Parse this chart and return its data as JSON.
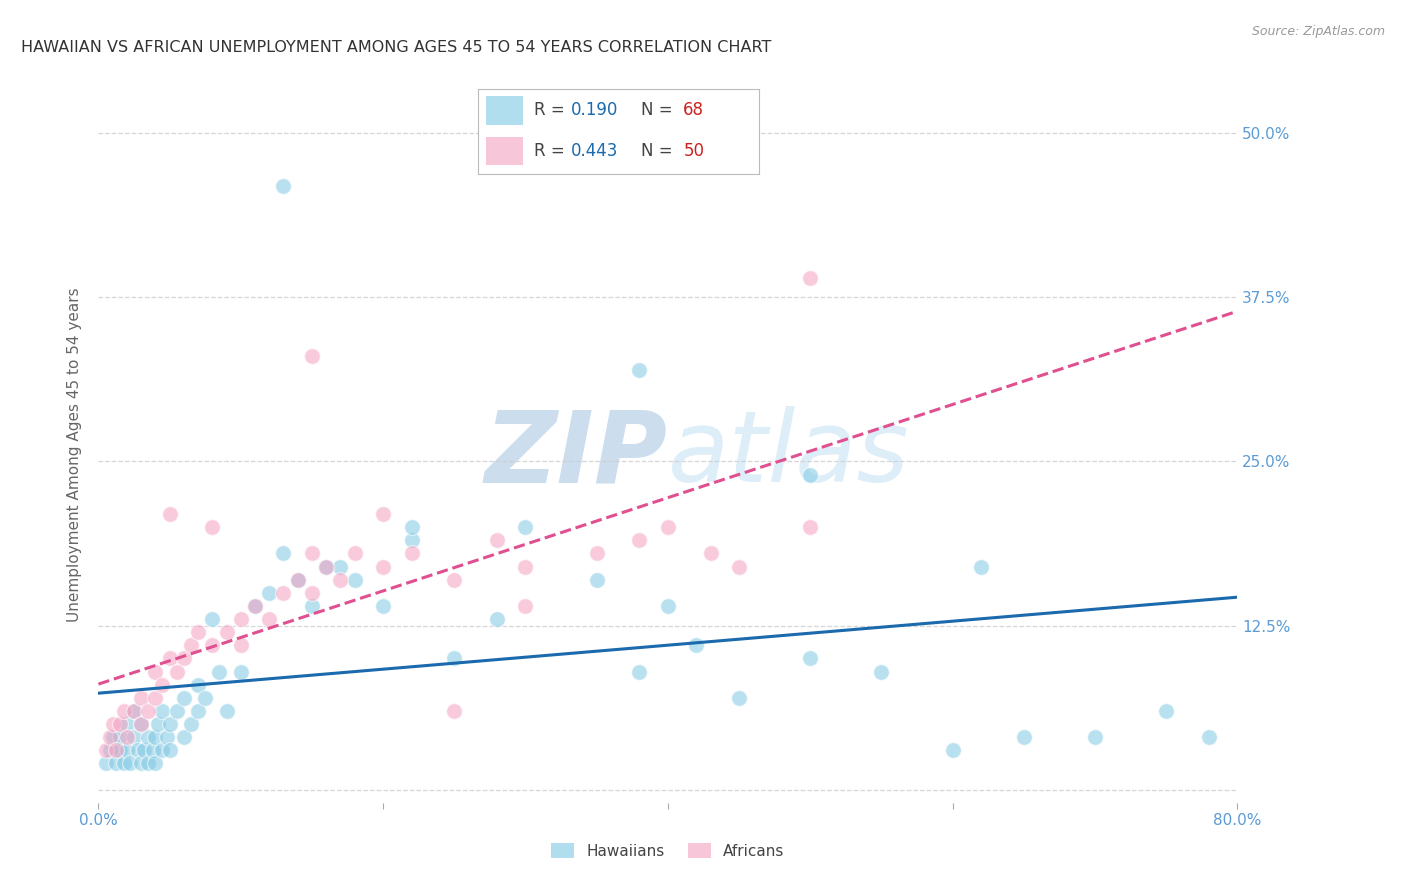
{
  "title": "HAWAIIAN VS AFRICAN UNEMPLOYMENT AMONG AGES 45 TO 54 YEARS CORRELATION CHART",
  "source": "Source: ZipAtlas.com",
  "ylabel": "Unemployment Among Ages 45 to 54 years",
  "xlim": [
    0.0,
    0.8
  ],
  "ylim": [
    -0.01,
    0.52
  ],
  "xticks": [
    0.0,
    0.2,
    0.4,
    0.6,
    0.8
  ],
  "xticklabels": [
    "0.0%",
    "",
    "",
    "",
    "80.0%"
  ],
  "yticks": [
    0.0,
    0.125,
    0.25,
    0.375,
    0.5
  ],
  "right_yticklabels": [
    "",
    "12.5%",
    "25.0%",
    "37.5%",
    "50.0%"
  ],
  "hawaiian_R": 0.19,
  "hawaiian_N": 68,
  "african_R": 0.443,
  "african_N": 50,
  "hawaiian_color": "#7ec8e3",
  "african_color": "#f4a0c0",
  "hawaiian_line_color": "#1a6aad",
  "african_line_color": "#e05090",
  "hawaiian_scatter_x": [
    0.005,
    0.008,
    0.01,
    0.012,
    0.015,
    0.015,
    0.018,
    0.02,
    0.02,
    0.022,
    0.025,
    0.025,
    0.028,
    0.03,
    0.03,
    0.032,
    0.035,
    0.035,
    0.038,
    0.04,
    0.04,
    0.042,
    0.045,
    0.045,
    0.048,
    0.05,
    0.05,
    0.055,
    0.06,
    0.06,
    0.065,
    0.07,
    0.07,
    0.075,
    0.08,
    0.085,
    0.09,
    0.1,
    0.11,
    0.12,
    0.13,
    0.14,
    0.15,
    0.16,
    0.17,
    0.18,
    0.2,
    0.22,
    0.22,
    0.25,
    0.28,
    0.3,
    0.35,
    0.38,
    0.4,
    0.42,
    0.45,
    0.5,
    0.55,
    0.6,
    0.62,
    0.65,
    0.7,
    0.75,
    0.78,
    0.13,
    0.38,
    0.5
  ],
  "hawaiian_scatter_y": [
    0.02,
    0.03,
    0.04,
    0.02,
    0.03,
    0.04,
    0.02,
    0.03,
    0.05,
    0.02,
    0.04,
    0.06,
    0.03,
    0.02,
    0.05,
    0.03,
    0.04,
    0.02,
    0.03,
    0.04,
    0.02,
    0.05,
    0.03,
    0.06,
    0.04,
    0.05,
    0.03,
    0.06,
    0.04,
    0.07,
    0.05,
    0.06,
    0.08,
    0.07,
    0.13,
    0.09,
    0.06,
    0.09,
    0.14,
    0.15,
    0.18,
    0.16,
    0.14,
    0.17,
    0.17,
    0.16,
    0.14,
    0.19,
    0.2,
    0.1,
    0.13,
    0.2,
    0.16,
    0.09,
    0.14,
    0.11,
    0.07,
    0.1,
    0.09,
    0.03,
    0.17,
    0.04,
    0.04,
    0.06,
    0.04,
    0.46,
    0.32,
    0.24
  ],
  "african_scatter_x": [
    0.005,
    0.008,
    0.01,
    0.012,
    0.015,
    0.018,
    0.02,
    0.025,
    0.03,
    0.03,
    0.035,
    0.04,
    0.04,
    0.045,
    0.05,
    0.055,
    0.06,
    0.065,
    0.07,
    0.08,
    0.09,
    0.1,
    0.11,
    0.12,
    0.13,
    0.14,
    0.15,
    0.16,
    0.17,
    0.18,
    0.2,
    0.22,
    0.25,
    0.28,
    0.3,
    0.35,
    0.38,
    0.4,
    0.43,
    0.45,
    0.5,
    0.05,
    0.08,
    0.1,
    0.15,
    0.2,
    0.3,
    0.5,
    0.15,
    0.25
  ],
  "african_scatter_y": [
    0.03,
    0.04,
    0.05,
    0.03,
    0.05,
    0.06,
    0.04,
    0.06,
    0.05,
    0.07,
    0.06,
    0.07,
    0.09,
    0.08,
    0.1,
    0.09,
    0.1,
    0.11,
    0.12,
    0.11,
    0.12,
    0.13,
    0.14,
    0.13,
    0.15,
    0.16,
    0.15,
    0.17,
    0.16,
    0.18,
    0.17,
    0.18,
    0.16,
    0.19,
    0.17,
    0.18,
    0.19,
    0.2,
    0.18,
    0.17,
    0.39,
    0.21,
    0.2,
    0.11,
    0.18,
    0.21,
    0.14,
    0.2,
    0.33,
    0.06
  ],
  "background_color": "#ffffff",
  "grid_color": "#cccccc",
  "tick_color": "#5b9bd5",
  "watermark_color": "#ddeeff"
}
